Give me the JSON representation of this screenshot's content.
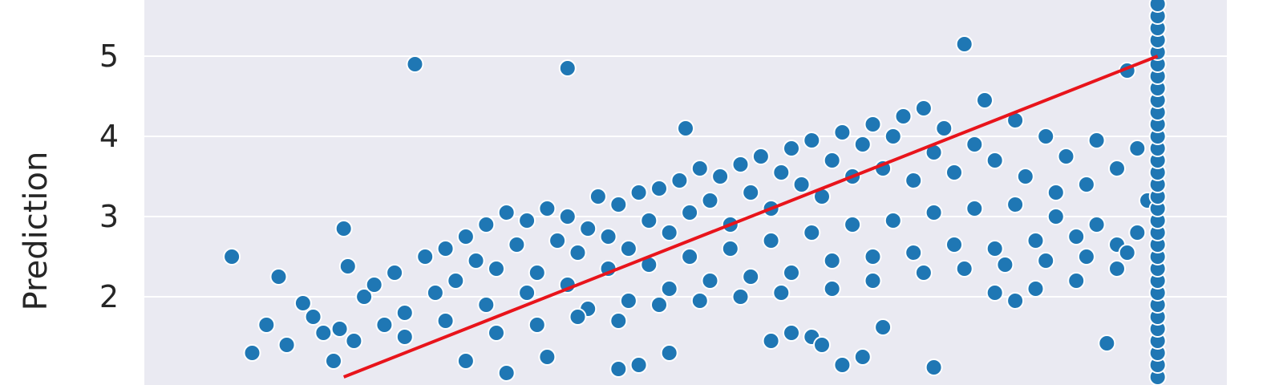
{
  "chart_data": {
    "type": "scatter",
    "title": "",
    "xlabel": "",
    "ylabel": "Prediction",
    "grid": true,
    "colors": {
      "background": "#EAEAF2",
      "point": "#1F77B4",
      "point_edge": "#FFFFFF",
      "fit_line": "#E8141B"
    },
    "x_range": [
      0.02,
      5.34
    ],
    "y_range": [
      0.9,
      5.7
    ],
    "y_ticks": [
      {
        "value": 2,
        "label": "2"
      },
      {
        "value": 3,
        "label": "3"
      },
      {
        "value": 4,
        "label": "4"
      },
      {
        "value": 5,
        "label": "5"
      }
    ],
    "fit_line": {
      "x": [
        1.0,
        5.0
      ],
      "y": [
        1.0,
        5.0
      ]
    },
    "series": [
      {
        "color": "#1F77B4",
        "points": [
          [
            0.45,
            2.5
          ],
          [
            0.55,
            1.3
          ],
          [
            0.62,
            1.65
          ],
          [
            0.68,
            2.25
          ],
          [
            0.8,
            1.92
          ],
          [
            0.9,
            1.55
          ],
          [
            0.95,
            1.2
          ],
          [
            1.0,
            2.85
          ],
          [
            1.02,
            2.38
          ],
          [
            1.1,
            2.0
          ],
          [
            1.3,
            1.8
          ],
          [
            1.35,
            4.9
          ],
          [
            2.1,
            4.85
          ],
          [
            2.68,
            4.1
          ],
          [
            4.05,
            5.15
          ],
          [
            4.85,
            4.82
          ],
          [
            3.9,
            1.12
          ],
          [
            4.75,
            1.42
          ],
          [
            2.35,
            1.1
          ],
          [
            2.45,
            1.15
          ],
          [
            3.2,
            1.55
          ],
          [
            3.1,
            1.45
          ],
          [
            3.3,
            1.5
          ],
          [
            4.2,
            2.05
          ],
          [
            4.6,
            2.2
          ],
          [
            4.8,
            2.35
          ],
          [
            1.6,
            1.2
          ],
          [
            1.8,
            1.05
          ],
          [
            2.0,
            1.25
          ],
          [
            2.6,
            1.3
          ],
          [
            3.35,
            1.4
          ],
          [
            3.45,
            1.15
          ],
          [
            3.55,
            1.25
          ],
          [
            3.65,
            1.62
          ],
          [
            4.3,
            1.95
          ],
          [
            4.4,
            2.1
          ],
          [
            0.72,
            1.4
          ],
          [
            0.85,
            1.75
          ],
          [
            0.98,
            1.6
          ],
          [
            1.05,
            1.45
          ],
          [
            1.15,
            2.15
          ],
          [
            1.2,
            1.65
          ],
          [
            1.25,
            2.3
          ],
          [
            1.4,
            2.5
          ],
          [
            1.45,
            2.05
          ],
          [
            1.5,
            2.6
          ],
          [
            1.55,
            2.2
          ],
          [
            1.6,
            2.75
          ],
          [
            1.65,
            2.45
          ],
          [
            1.7,
            2.9
          ],
          [
            1.75,
            2.35
          ],
          [
            1.8,
            3.05
          ],
          [
            1.85,
            2.65
          ],
          [
            1.9,
            2.95
          ],
          [
            1.95,
            2.3
          ],
          [
            2.0,
            3.1
          ],
          [
            2.05,
            2.7
          ],
          [
            2.1,
            3.0
          ],
          [
            2.15,
            2.55
          ],
          [
            2.2,
            2.85
          ],
          [
            2.25,
            3.25
          ],
          [
            2.3,
            2.75
          ],
          [
            2.35,
            3.15
          ],
          [
            2.4,
            2.6
          ],
          [
            2.45,
            3.3
          ],
          [
            2.5,
            2.95
          ],
          [
            2.55,
            3.35
          ],
          [
            2.6,
            2.8
          ],
          [
            2.65,
            3.45
          ],
          [
            2.7,
            3.05
          ],
          [
            2.75,
            3.6
          ],
          [
            2.8,
            3.2
          ],
          [
            2.85,
            3.5
          ],
          [
            2.9,
            2.9
          ],
          [
            2.95,
            3.65
          ],
          [
            3.0,
            3.3
          ],
          [
            3.05,
            3.75
          ],
          [
            3.1,
            3.1
          ],
          [
            3.15,
            3.55
          ],
          [
            3.2,
            3.85
          ],
          [
            3.25,
            3.4
          ],
          [
            3.3,
            3.95
          ],
          [
            3.35,
            3.25
          ],
          [
            3.4,
            3.7
          ],
          [
            3.45,
            4.05
          ],
          [
            3.5,
            3.5
          ],
          [
            3.55,
            3.9
          ],
          [
            3.6,
            4.15
          ],
          [
            3.65,
            3.6
          ],
          [
            3.7,
            4.0
          ],
          [
            3.75,
            4.25
          ],
          [
            3.8,
            3.45
          ],
          [
            3.85,
            4.35
          ],
          [
            3.9,
            3.8
          ],
          [
            3.95,
            4.1
          ],
          [
            4.0,
            3.55
          ],
          [
            4.1,
            3.9
          ],
          [
            4.15,
            4.45
          ],
          [
            4.2,
            3.7
          ],
          [
            4.3,
            4.2
          ],
          [
            4.35,
            3.5
          ],
          [
            4.45,
            4.0
          ],
          [
            4.5,
            3.3
          ],
          [
            4.55,
            3.75
          ],
          [
            4.65,
            3.4
          ],
          [
            4.7,
            3.95
          ],
          [
            4.8,
            3.6
          ],
          [
            4.9,
            3.85
          ],
          [
            4.95,
            3.2
          ],
          [
            1.3,
            1.5
          ],
          [
            1.5,
            1.7
          ],
          [
            1.7,
            1.9
          ],
          [
            1.9,
            2.05
          ],
          [
            2.1,
            2.15
          ],
          [
            2.3,
            2.35
          ],
          [
            2.5,
            2.4
          ],
          [
            2.7,
            2.5
          ],
          [
            2.9,
            2.6
          ],
          [
            3.1,
            2.7
          ],
          [
            3.3,
            2.8
          ],
          [
            3.5,
            2.9
          ],
          [
            3.7,
            2.95
          ],
          [
            3.9,
            3.05
          ],
          [
            4.1,
            3.1
          ],
          [
            4.3,
            3.15
          ],
          [
            4.5,
            3.0
          ],
          [
            4.7,
            2.9
          ],
          [
            4.9,
            2.8
          ],
          [
            2.2,
            1.85
          ],
          [
            2.4,
            1.95
          ],
          [
            2.6,
            2.1
          ],
          [
            2.8,
            2.2
          ],
          [
            3.0,
            2.25
          ],
          [
            3.2,
            2.3
          ],
          [
            3.4,
            2.45
          ],
          [
            3.6,
            2.5
          ],
          [
            3.8,
            2.55
          ],
          [
            4.0,
            2.65
          ],
          [
            4.2,
            2.6
          ],
          [
            4.4,
            2.7
          ],
          [
            4.6,
            2.75
          ],
          [
            4.8,
            2.65
          ],
          [
            1.75,
            1.55
          ],
          [
            1.95,
            1.65
          ],
          [
            2.15,
            1.75
          ],
          [
            2.35,
            1.7
          ],
          [
            2.55,
            1.9
          ],
          [
            2.75,
            1.95
          ],
          [
            2.95,
            2.0
          ],
          [
            3.15,
            2.05
          ],
          [
            3.4,
            2.1
          ],
          [
            3.6,
            2.2
          ],
          [
            3.85,
            2.3
          ],
          [
            4.05,
            2.35
          ],
          [
            4.25,
            2.4
          ],
          [
            4.45,
            2.45
          ],
          [
            4.65,
            2.5
          ],
          [
            4.85,
            2.55
          ]
        ]
      },
      {
        "color": "#1F77B4",
        "points": [
          [
            5.0,
            1.0
          ],
          [
            5.0,
            1.15
          ],
          [
            5.0,
            1.3
          ],
          [
            5.0,
            1.45
          ],
          [
            5.0,
            1.6
          ],
          [
            5.0,
            1.75
          ],
          [
            5.0,
            1.9
          ],
          [
            5.0,
            2.05
          ],
          [
            5.0,
            2.2
          ],
          [
            5.0,
            2.35
          ],
          [
            5.0,
            2.5
          ],
          [
            5.0,
            2.65
          ],
          [
            5.0,
            2.8
          ],
          [
            5.0,
            2.95
          ],
          [
            5.0,
            3.1
          ],
          [
            5.0,
            3.25
          ],
          [
            5.0,
            3.4
          ],
          [
            5.0,
            3.55
          ],
          [
            5.0,
            3.7
          ],
          [
            5.0,
            3.85
          ],
          [
            5.0,
            4.0
          ],
          [
            5.0,
            4.15
          ],
          [
            5.0,
            4.3
          ],
          [
            5.0,
            4.45
          ],
          [
            5.0,
            4.6
          ],
          [
            5.0,
            4.75
          ],
          [
            5.0,
            4.9
          ],
          [
            5.0,
            5.05
          ],
          [
            5.0,
            5.2
          ],
          [
            5.0,
            5.35
          ],
          [
            5.0,
            5.5
          ],
          [
            5.0,
            5.65
          ]
        ]
      }
    ]
  }
}
